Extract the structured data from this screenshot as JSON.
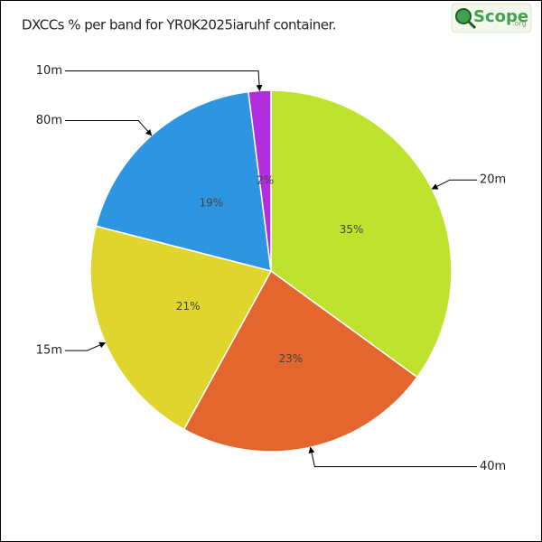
{
  "chart_data": {
    "type": "pie",
    "title": "DXCCs % per band for YR0K2025iaruhf container.",
    "logo": "Scope",
    "logo_suffix": ".org",
    "categories": [
      "20m",
      "40m",
      "15m",
      "80m",
      "10m"
    ],
    "values": [
      35,
      23,
      21,
      19,
      2
    ],
    "value_labels": [
      "35%",
      "23%",
      "21%",
      "19%",
      "2%"
    ],
    "colors": [
      "#bfe22e",
      "#e2662e",
      "#e0d52e",
      "#2e95e0",
      "#b02ee0"
    ]
  }
}
